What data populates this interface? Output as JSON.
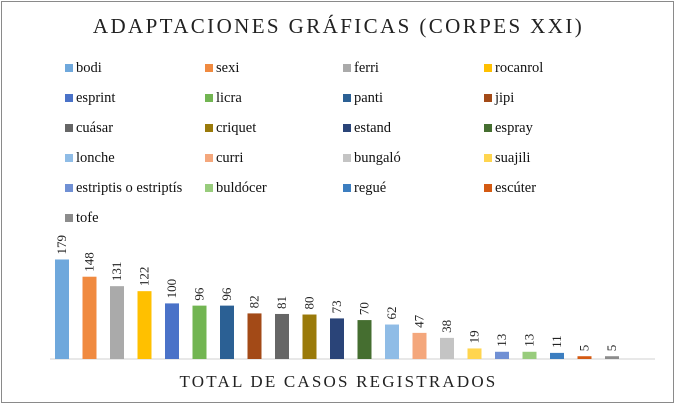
{
  "chart_data": {
    "type": "bar",
    "title": "ADAPTACIONES GRÁFICAS (CORPES XXI)",
    "xlabel": "TOTAL DE CASOS REGISTRADOS",
    "ylabel": "",
    "ylim": [
      0,
      200
    ],
    "legend_position": "top",
    "series": [
      {
        "name": "bodi",
        "value": 179,
        "color": "#6fa8dc"
      },
      {
        "name": "sexi",
        "value": 148,
        "color": "#f08a40"
      },
      {
        "name": "ferri",
        "value": 131,
        "color": "#aaaaaa"
      },
      {
        "name": "rocanrol",
        "value": 122,
        "color": "#ffc000"
      },
      {
        "name": "esprint",
        "value": 100,
        "color": "#4a72c8"
      },
      {
        "name": "licra",
        "value": 96,
        "color": "#72b552"
      },
      {
        "name": "panti",
        "value": 96,
        "color": "#2b6094"
      },
      {
        "name": "jipi",
        "value": 82,
        "color": "#a34a17"
      },
      {
        "name": "cuásar",
        "value": 81,
        "color": "#666666"
      },
      {
        "name": "criquet",
        "value": 80,
        "color": "#9a7a0a"
      },
      {
        "name": "estand",
        "value": 73,
        "color": "#2a4478"
      },
      {
        "name": "espray",
        "value": 70,
        "color": "#456e30"
      },
      {
        "name": "lonche",
        "value": 62,
        "color": "#8fbce6"
      },
      {
        "name": "curri",
        "value": 47,
        "color": "#f4a77c"
      },
      {
        "name": "bungaló",
        "value": 38,
        "color": "#c4c4c4"
      },
      {
        "name": "suajili",
        "value": 19,
        "color": "#ffd54f"
      },
      {
        "name": "estriptis o estriptís",
        "value": 13,
        "color": "#7090d4"
      },
      {
        "name": "buldócer",
        "value": 13,
        "color": "#98cc7c"
      },
      {
        "name": "regué",
        "value": 11,
        "color": "#3c7ec0"
      },
      {
        "name": "escúter",
        "value": 5,
        "color": "#d45a12"
      },
      {
        "name": "tofe",
        "value": 5,
        "color": "#8c8c8c"
      }
    ]
  }
}
